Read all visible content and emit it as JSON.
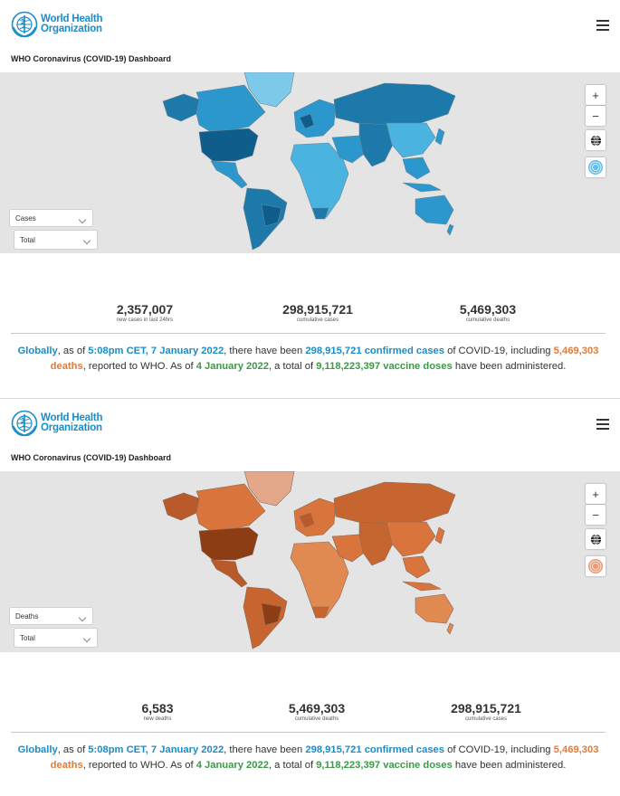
{
  "org": {
    "line1": "World Health",
    "line2": "Organization"
  },
  "dashboard_title": "WHO Coronavirus (COVID-19) Dashboard",
  "zoom": {
    "in": "+",
    "out": "−"
  },
  "colors": {
    "who_blue": "#1a8cc7",
    "deaths_orange": "#e07b39",
    "vaccine_green": "#3a9a45",
    "map_bg": "#e4e4e4"
  },
  "panels": [
    {
      "metric_select": "Cases",
      "scope_select": "Total",
      "map_theme": "cases-blue",
      "stats": [
        {
          "value": "2,357,007",
          "label": "new cases in last 24hrs"
        },
        {
          "value": "298,915,721",
          "label": "cumulative cases"
        },
        {
          "value": "5,469,303",
          "label": "cumulative deaths"
        }
      ]
    },
    {
      "metric_select": "Deaths",
      "scope_select": "Total",
      "map_theme": "deaths-orange",
      "stats": [
        {
          "value": "6,583",
          "label": "new deaths"
        },
        {
          "value": "5,469,303",
          "label": "cumulative deaths"
        },
        {
          "value": "298,915,721",
          "label": "cumulative cases"
        }
      ]
    }
  ],
  "summary": {
    "globally": "Globally",
    "t1": ", as of ",
    "time": "5:08pm CET, 7 January 2022",
    "t2": ", there have been ",
    "cases": "298,915,721 confirmed cases",
    "t3": " of COVID-19, including ",
    "deaths": "5,469,303 deaths",
    "t4": ", reported to WHO. As of ",
    "vacc_date": "4 January 2022",
    "t5": ", a total of ",
    "doses": "9,118,223,397 vaccine doses",
    "t6": " have been administered."
  },
  "icons": [
    "who-emblem-icon",
    "hamburger-menu-icon",
    "globe-icon",
    "layers-icon",
    "chevron-down-icon"
  ]
}
